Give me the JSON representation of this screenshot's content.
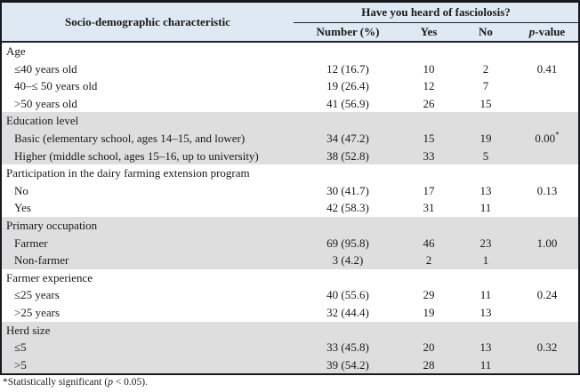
{
  "table": {
    "header": {
      "col1": "Socio-demographic characteristic",
      "span": "Have you heard of fasciolosis?",
      "sub": [
        "Number (%)",
        "Yes",
        "No"
      ],
      "p_header": {
        "italic": "p",
        "rest": "-value"
      }
    },
    "groups": [
      {
        "label": "Age",
        "rows": [
          {
            "label": "≤40 years old",
            "number": "12 (16.7)",
            "yes": "10",
            "no": "2",
            "p": "0.41",
            "p_sup": ""
          },
          {
            "label": "40–≤ 50 years old",
            "number": "19 (26.4)",
            "yes": "12",
            "no": "7",
            "p": "",
            "p_sup": ""
          },
          {
            "label": ">50 years old",
            "number": "41 (56.9)",
            "yes": "26",
            "no": "15",
            "p": "",
            "p_sup": ""
          }
        ]
      },
      {
        "label": "Education level",
        "rows": [
          {
            "label": "Basic (elementary school, ages 14–15, and lower)",
            "number": "34 (47.2)",
            "yes": "15",
            "no": "19",
            "p": "0.00",
            "p_sup": "*"
          },
          {
            "label": "Higher (middle school, ages 15–16, up to university)",
            "number": "38 (52.8)",
            "yes": "33",
            "no": "5",
            "p": "",
            "p_sup": ""
          }
        ]
      },
      {
        "label": "Participation in the dairy farming extension program",
        "rows": [
          {
            "label": "No",
            "number": "30 (41.7)",
            "yes": "17",
            "no": "13",
            "p": "0.13",
            "p_sup": ""
          },
          {
            "label": "Yes",
            "number": "42 (58.3)",
            "yes": "31",
            "no": "11",
            "p": "",
            "p_sup": ""
          }
        ]
      },
      {
        "label": "Primary occupation",
        "rows": [
          {
            "label": "Farmer",
            "number": "69 (95.8)",
            "yes": "46",
            "no": "23",
            "p": "1.00",
            "p_sup": ""
          },
          {
            "label": "Non-farmer",
            "number": "3 (4.2)",
            "yes": "2",
            "no": "1",
            "p": "",
            "p_sup": ""
          }
        ]
      },
      {
        "label": "Farmer experience",
        "rows": [
          {
            "label": "≤25 years",
            "number": "40 (55.6)",
            "yes": "29",
            "no": "11",
            "p": "0.24",
            "p_sup": ""
          },
          {
            "label": ">25 years",
            "number": "32 (44.4)",
            "yes": "19",
            "no": "13",
            "p": "",
            "p_sup": ""
          }
        ]
      },
      {
        "label": "Herd size",
        "rows": [
          {
            "label": "≤5",
            "number": "33 (45.8)",
            "yes": "20",
            "no": "13",
            "p": "0.32",
            "p_sup": ""
          },
          {
            "label": ">5",
            "number": "39 (54.2)",
            "yes": "28",
            "no": "11",
            "p": "",
            "p_sup": ""
          }
        ]
      }
    ]
  },
  "footnote": {
    "pre": "*Statistically significant (",
    "p": "p",
    "post": " < 0.05)."
  },
  "colors": {
    "header_bg": "#dfe9f3",
    "shaded_row_bg": "#dedede",
    "border": "#17191f",
    "text": "#1a1a1a"
  }
}
